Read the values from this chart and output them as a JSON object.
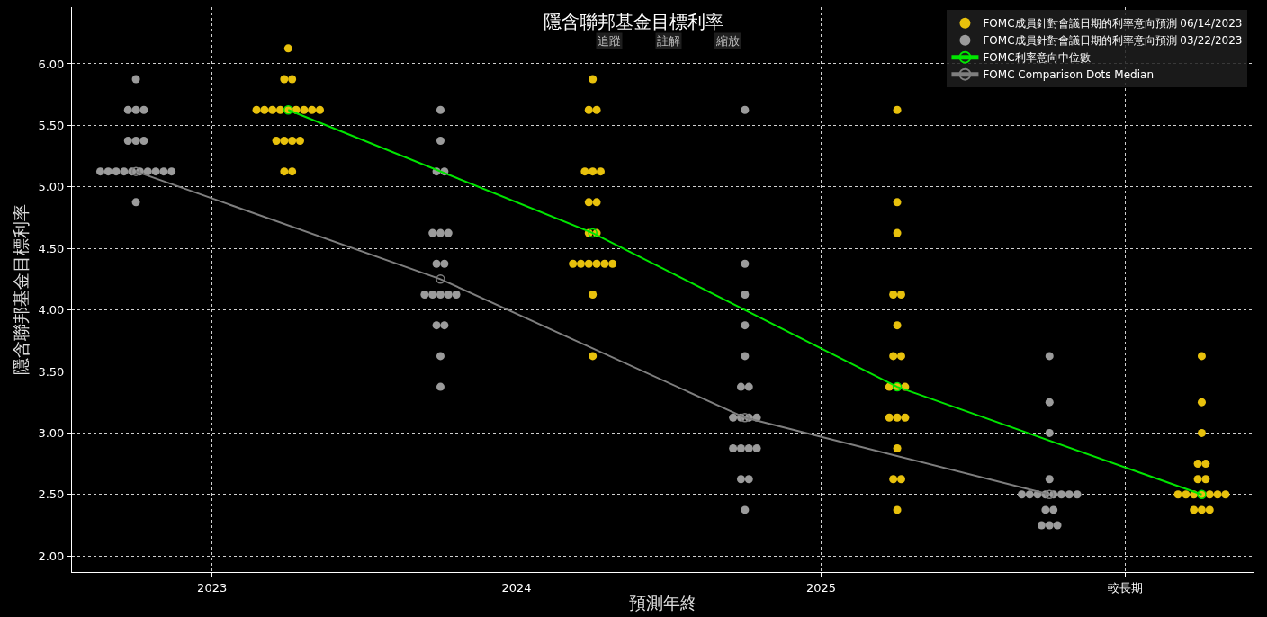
{
  "chart_data": {
    "type": "scatter",
    "title": "隱含聯邦基金目標利率",
    "xlabel": "預測年終",
    "ylabel": "隱含聯邦基金目標利率",
    "annotations": [
      "追蹤",
      "註解",
      "縮放"
    ],
    "xlim": [
      2022.54,
      2026.42
    ],
    "xticks": [
      2023,
      2024,
      2025,
      {
        "value": 2026,
        "label": "較長期"
      }
    ],
    "ylim": [
      1.87,
      6.46
    ],
    "yticks": [
      {
        "value": 2,
        "label": "2.00"
      },
      {
        "value": 2.5,
        "label": "2.50"
      },
      {
        "value": 3,
        "label": "3.00"
      },
      {
        "value": 3.5,
        "label": "3.50"
      },
      {
        "value": 4,
        "label": "4.00"
      },
      {
        "value": 4.5,
        "label": "4.50"
      },
      {
        "value": 5,
        "label": "5.00"
      },
      {
        "value": 5.5,
        "label": "5.50"
      },
      {
        "value": 6,
        "label": "6.00"
      }
    ],
    "grid": true,
    "legend": "top right",
    "marker": "circle",
    "series": [
      {
        "name": "FOMC成員針對會議日期的利率意向預測 06/14/2023",
        "color": "#e8c10c",
        "x": [
          2023.25,
          2023.237,
          2023.263,
          2023.146,
          2023.172,
          2023.198,
          2023.224,
          2023.25,
          2023.276,
          2023.302,
          2023.328,
          2023.354,
          2023.211,
          2023.237,
          2023.263,
          2023.289,
          2023.237,
          2023.263,
          2024.25,
          2024.237,
          2024.263,
          2024.224,
          2024.25,
          2024.276,
          2024.237,
          2024.263,
          2024.237,
          2024.263,
          2024.185,
          2024.211,
          2024.237,
          2024.263,
          2024.289,
          2024.315,
          2024.25,
          2024.25,
          2025.25,
          2025.25,
          2025.25,
          2025.237,
          2025.263,
          2025.25,
          2025.237,
          2025.263,
          2025.224,
          2025.25,
          2025.276,
          2025.224,
          2025.25,
          2025.276,
          2025.25,
          2025.237,
          2025.263,
          2025.25,
          2026.25,
          2026.25,
          2026.25,
          2026.237,
          2026.263,
          2026.237,
          2026.263,
          2026.172,
          2026.198,
          2026.224,
          2026.25,
          2026.276,
          2026.302,
          2026.328,
          2026.224,
          2026.25,
          2026.276
        ],
        "values": [
          6.125,
          5.875,
          5.875,
          5.625,
          5.625,
          5.625,
          5.625,
          5.625,
          5.625,
          5.625,
          5.625,
          5.625,
          5.375,
          5.375,
          5.375,
          5.375,
          5.125,
          5.125,
          5.875,
          5.625,
          5.625,
          5.125,
          5.125,
          5.125,
          4.875,
          4.875,
          4.625,
          4.625,
          4.375,
          4.375,
          4.375,
          4.375,
          4.375,
          4.375,
          4.125,
          3.625,
          5.625,
          4.875,
          4.625,
          4.125,
          4.125,
          3.875,
          3.625,
          3.625,
          3.375,
          3.375,
          3.375,
          3.125,
          3.125,
          3.125,
          2.875,
          2.625,
          2.625,
          2.375,
          3.625,
          3.25,
          3.0,
          2.75,
          2.75,
          2.625,
          2.625,
          2.5,
          2.5,
          2.5,
          2.5,
          2.5,
          2.5,
          2.5,
          2.375,
          2.375,
          2.375
        ]
      },
      {
        "name": "FOMC成員針對會議日期的利率意向預測 03/22/2023",
        "color": "#9b9b9b",
        "x": [
          2022.75,
          2022.724,
          2022.75,
          2022.776,
          2022.724,
          2022.75,
          2022.776,
          2022.633,
          2022.659,
          2022.685,
          2022.711,
          2022.737,
          2022.763,
          2022.789,
          2022.815,
          2022.841,
          2022.867,
          2022.75,
          2023.75,
          2023.75,
          2023.737,
          2023.763,
          2023.724,
          2023.75,
          2023.776,
          2023.737,
          2023.763,
          2023.698,
          2023.724,
          2023.75,
          2023.776,
          2023.802,
          2023.737,
          2023.763,
          2023.75,
          2023.75,
          2024.75,
          2024.75,
          2024.75,
          2024.75,
          2024.75,
          2024.737,
          2024.763,
          2024.711,
          2024.737,
          2024.763,
          2024.789,
          2024.711,
          2024.737,
          2024.763,
          2024.789,
          2024.737,
          2024.763,
          2024.75,
          2025.75,
          2025.75,
          2025.75,
          2025.75,
          2025.659,
          2025.685,
          2025.711,
          2025.737,
          2025.763,
          2025.789,
          2025.815,
          2025.841,
          2025.737,
          2025.763,
          2025.724,
          2025.75,
          2025.776
        ],
        "values": [
          5.875,
          5.625,
          5.625,
          5.625,
          5.375,
          5.375,
          5.375,
          5.125,
          5.125,
          5.125,
          5.125,
          5.125,
          5.125,
          5.125,
          5.125,
          5.125,
          5.125,
          4.875,
          5.625,
          5.375,
          5.125,
          5.125,
          4.625,
          4.625,
          4.625,
          4.375,
          4.375,
          4.125,
          4.125,
          4.125,
          4.125,
          4.125,
          3.875,
          3.875,
          3.625,
          3.375,
          5.625,
          4.375,
          4.125,
          3.875,
          3.625,
          3.375,
          3.375,
          3.125,
          3.125,
          3.125,
          3.125,
          2.875,
          2.875,
          2.875,
          2.875,
          2.625,
          2.625,
          2.375,
          3.625,
          3.25,
          3.0,
          2.625,
          2.5,
          2.5,
          2.5,
          2.5,
          2.5,
          2.5,
          2.5,
          2.5,
          2.375,
          2.375,
          2.25,
          2.25,
          2.25
        ]
      },
      {
        "name": "FOMC利率意向中位數",
        "type": "line",
        "color": "#00e600",
        "x": [
          2023.25,
          2024.25,
          2025.25,
          2026.25
        ],
        "values": [
          5.625,
          4.625,
          3.375,
          2.5
        ]
      },
      {
        "name": "FOMC Comparison Dots Median",
        "type": "line",
        "color": "#7f7f7f",
        "x": [
          2022.75,
          2023.75,
          2024.75,
          2025.75
        ],
        "values": [
          5.125,
          4.25,
          3.125,
          2.5
        ]
      }
    ]
  }
}
